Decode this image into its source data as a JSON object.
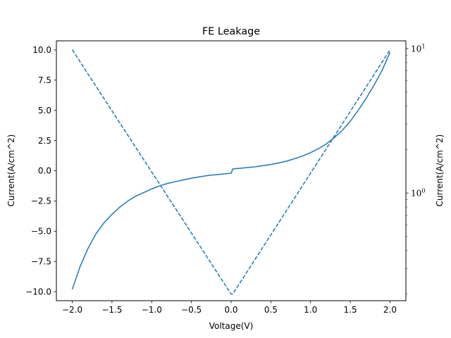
{
  "chart_data": {
    "type": "line",
    "title": "FE Leakage",
    "xlabel": "Voltage(V)",
    "ylabel": "Current(A/cm^2)",
    "ylabel_right": "Current(A/cm^2)",
    "xlim": [
      -2.2,
      2.2
    ],
    "ylim": [
      -10.75,
      10.75
    ],
    "ylim_right": [
      0.18,
      11.3
    ],
    "yscale_right": "log",
    "grid": false,
    "x_ticks": [
      "−2.0",
      "−1.5",
      "−1.0",
      "−0.5",
      "0.0",
      "0.5",
      "1.0",
      "1.5",
      "2.0"
    ],
    "y_ticks": [
      "−10.0",
      "−7.5",
      "−5.0",
      "−2.5",
      "0.0",
      "2.5",
      "5.0",
      "7.5",
      "10.0"
    ],
    "y_ticks_right": [
      {
        "base": "10",
        "exp": "0"
      },
      {
        "base": "10",
        "exp": "1"
      }
    ],
    "series": [
      {
        "axis": "left",
        "style": "solid",
        "color": "#1f77b4",
        "x": [
          -2.0,
          -1.9,
          -1.8,
          -1.7,
          -1.6,
          -1.5,
          -1.4,
          -1.3,
          -1.2,
          -1.1,
          -1.0,
          -0.9,
          -0.8,
          -0.7,
          -0.6,
          -0.5,
          -0.4,
          -0.3,
          -0.2,
          -0.1,
          0.0,
          0.02,
          0.1,
          0.2,
          0.3,
          0.4,
          0.5,
          0.6,
          0.7,
          0.8,
          0.9,
          1.0,
          1.1,
          1.2,
          1.3,
          1.4,
          1.5,
          1.6,
          1.7,
          1.8,
          1.9,
          2.0
        ],
        "y": [
          -9.8,
          -7.9,
          -6.4,
          -5.2,
          -4.3,
          -3.6,
          -3.0,
          -2.5,
          -2.1,
          -1.8,
          -1.5,
          -1.25,
          -1.05,
          -0.9,
          -0.75,
          -0.62,
          -0.5,
          -0.4,
          -0.33,
          -0.27,
          -0.2,
          0.15,
          0.2,
          0.26,
          0.33,
          0.42,
          0.52,
          0.65,
          0.8,
          1.0,
          1.22,
          1.5,
          1.83,
          2.23,
          2.75,
          3.35,
          4.1,
          5.0,
          6.0,
          7.1,
          8.3,
          9.8
        ]
      },
      {
        "axis": "right",
        "style": "dashed",
        "color": "#1f77b4",
        "x": [
          -2.0,
          0.0,
          0.02,
          2.0
        ],
        "y": [
          9.8,
          0.2,
          0.2,
          9.8
        ]
      }
    ]
  }
}
